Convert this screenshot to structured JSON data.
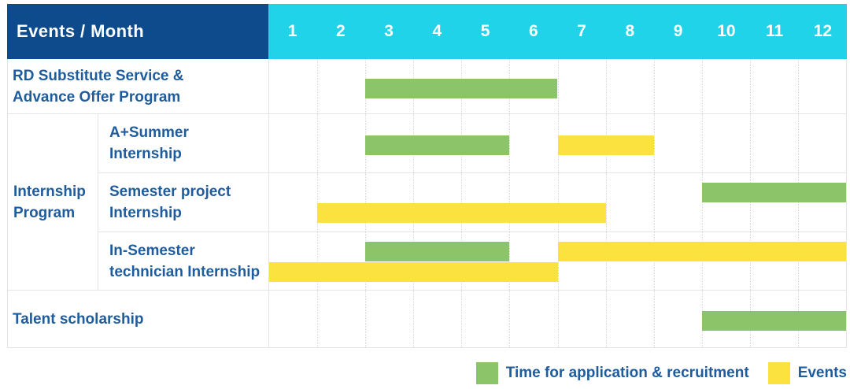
{
  "title_header": {
    "label": "Events / Month",
    "months": [
      "1",
      "2",
      "3",
      "4",
      "5",
      "6",
      "7",
      "8",
      "9",
      "10",
      "11",
      "12"
    ]
  },
  "legend": {
    "items": [
      {
        "key": "application",
        "label": "Time for application & recruitment",
        "color": "#8CC569"
      },
      {
        "key": "events",
        "label": "Events",
        "color": "#FCE23E"
      }
    ]
  },
  "colors": {
    "header_navy": "#0D4B8C",
    "header_cyan": "#20D3E8",
    "bar_green": "#8CC569",
    "bar_yellow": "#FCE23E",
    "label_blue": "#1E5C9E",
    "grid_border": "#E4E4E4",
    "grid_dotted": "#DADADA"
  },
  "chart_data": {
    "type": "gantt",
    "title": "Events / Month",
    "x_axis": {
      "unit": "month",
      "ticks": [
        1,
        2,
        3,
        4,
        5,
        6,
        7,
        8,
        9,
        10,
        11,
        12
      ],
      "range": [
        1,
        12
      ]
    },
    "grid": "dotted-vertical-month-lines",
    "legend_position": "bottom-right",
    "series_legend": [
      {
        "key": "application",
        "name": "Time for application & recruitment",
        "color": "#8CC569"
      },
      {
        "key": "events",
        "name": "Events",
        "color": "#FCE23E"
      }
    ],
    "rows": [
      {
        "group": "",
        "label": "RD Substitute Service &\nAdvance Offer Program",
        "bars": [
          {
            "series": "application",
            "start_month": 3,
            "end_month": 6,
            "line": "single"
          }
        ]
      },
      {
        "group": "Internship\nProgram",
        "label": "A+Summer\nInternship",
        "bars": [
          {
            "series": "application",
            "start_month": 3,
            "end_month": 5,
            "line": "single"
          },
          {
            "series": "events",
            "start_month": 7,
            "end_month": 8,
            "line": "single"
          }
        ]
      },
      {
        "group": "Internship\nProgram",
        "label": "Semester project\nInternship",
        "bars": [
          {
            "series": "application",
            "start_month": 10,
            "end_month": 12,
            "line": "top"
          },
          {
            "series": "events",
            "start_month": 2,
            "end_month": 7,
            "line": "bottom"
          }
        ]
      },
      {
        "group": "Internship\nProgram",
        "label": "In-Semester\ntechnician Internship",
        "bars": [
          {
            "series": "application",
            "start_month": 3,
            "end_month": 5,
            "line": "top"
          },
          {
            "series": "events",
            "start_month": 7,
            "end_month": 12,
            "line": "top"
          },
          {
            "series": "events",
            "start_month": 1,
            "end_month": 6,
            "line": "bottom"
          }
        ]
      },
      {
        "group": "",
        "label": "Talent scholarship",
        "bars": [
          {
            "series": "application",
            "start_month": 10,
            "end_month": 12,
            "line": "single"
          }
        ]
      }
    ]
  }
}
